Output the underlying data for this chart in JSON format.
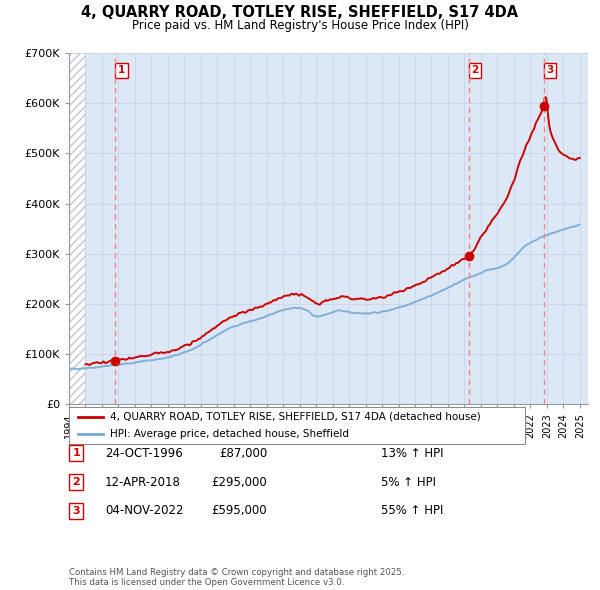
{
  "title": "4, QUARRY ROAD, TOTLEY RISE, SHEFFIELD, S17 4DA",
  "subtitle": "Price paid vs. HM Land Registry's House Price Index (HPI)",
  "xlim_start": 1994.0,
  "xlim_end": 2025.5,
  "ylim": [
    0,
    700000
  ],
  "yticks": [
    0,
    100000,
    200000,
    300000,
    400000,
    500000,
    600000,
    700000
  ],
  "ytick_labels": [
    "£0",
    "£100K",
    "£200K",
    "£300K",
    "£400K",
    "£500K",
    "£600K",
    "£700K"
  ],
  "sale_dates": [
    1996.82,
    2018.28,
    2022.84
  ],
  "sale_prices": [
    87000,
    295000,
    595000
  ],
  "sale_labels": [
    "1",
    "2",
    "3"
  ],
  "legend_line1": "4, QUARRY ROAD, TOTLEY RISE, SHEFFIELD, S17 4DA (detached house)",
  "legend_line2": "HPI: Average price, detached house, Sheffield",
  "table_rows": [
    [
      "1",
      "24-OCT-1996",
      "£87,000",
      "13% ↑ HPI"
    ],
    [
      "2",
      "12-APR-2018",
      "£295,000",
      "5% ↑ HPI"
    ],
    [
      "3",
      "04-NOV-2022",
      "£595,000",
      "55% ↑ HPI"
    ]
  ],
  "footnote": "Contains HM Land Registry data © Crown copyright and database right 2025.\nThis data is licensed under the Open Government Licence v3.0.",
  "hatch_region_end": 1995.0,
  "grid_color": "#c8d4e8",
  "bg_color": "#dce8f5",
  "red_line_color": "#cc0000",
  "blue_line_color": "#7aa8d4",
  "sale_dot_color": "#cc0000",
  "vline_color": "#ee8888",
  "hatch_color": "#c0c8d8"
}
